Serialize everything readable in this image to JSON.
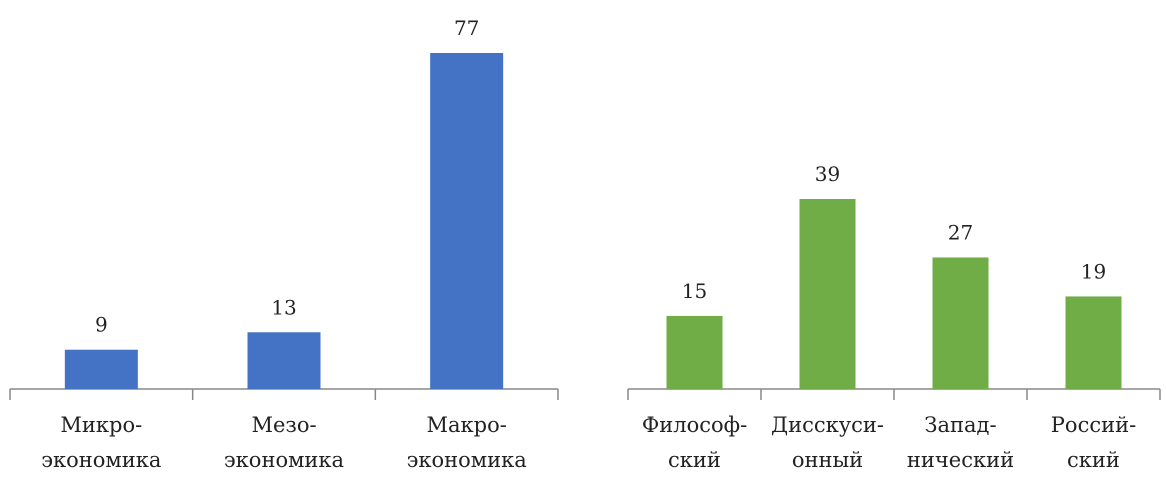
{
  "chart_data": [
    {
      "type": "bar",
      "categories": [
        [
          "Микро-",
          "экономика"
        ],
        [
          "Мезо-",
          "экономика"
        ],
        [
          "Макро-",
          "экономика"
        ]
      ],
      "values": [
        9,
        13,
        77
      ],
      "data_labels": [
        "9",
        "13",
        "77"
      ],
      "ylim": [
        0,
        77
      ],
      "grid": false,
      "legend": "none",
      "colors": {
        "bar": "#4472C4",
        "axis": "#888888"
      }
    },
    {
      "type": "bar",
      "categories": [
        [
          "Философ-",
          "ский"
        ],
        [
          "Дисскуси-",
          "онный"
        ],
        [
          "Запад-",
          "нический"
        ],
        [
          "Россий-",
          "ский"
        ]
      ],
      "values": [
        15,
        39,
        27,
        19
      ],
      "data_labels": [
        "15",
        "39",
        "27",
        "19"
      ],
      "ylim": [
        0,
        39
      ],
      "grid": false,
      "legend": "none",
      "colors": {
        "bar": "#70AD47",
        "axis": "#888888"
      }
    }
  ]
}
